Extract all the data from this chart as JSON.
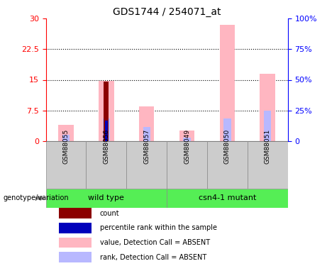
{
  "title": "GDS1744 / 254071_at",
  "samples": [
    "GSM88055",
    "GSM88056",
    "GSM88057",
    "GSM88049",
    "GSM88050",
    "GSM88051"
  ],
  "value_absent": [
    4.0,
    14.8,
    8.5,
    2.5,
    28.5,
    16.5
  ],
  "rank_absent": [
    1.5,
    5.5,
    3.5,
    0.8,
    5.5,
    7.5
  ],
  "count": [
    0,
    14.6,
    0,
    0,
    0,
    0
  ],
  "percentile_rank": [
    0,
    5.0,
    0,
    0,
    0,
    0
  ],
  "ylim_left": [
    0,
    30
  ],
  "ylim_right": [
    0,
    100
  ],
  "yticks_left": [
    0,
    7.5,
    15,
    22.5,
    30
  ],
  "yticks_right": [
    0,
    25,
    50,
    75,
    100
  ],
  "ytick_labels_left": [
    "0",
    "7.5",
    "15",
    "22.5",
    "30"
  ],
  "ytick_labels_right": [
    "0",
    "25%",
    "50%",
    "75%",
    "100%"
  ],
  "color_count": "#8B0000",
  "color_percentile": "#0000BB",
  "color_value_absent": "#FFB6C1",
  "color_rank_absent": "#b8b8ff",
  "genotype_label": "genotype/variation",
  "group_ranges": [
    [
      0,
      2,
      "wild type"
    ],
    [
      3,
      5,
      "csn4-1 mutant"
    ]
  ],
  "green_color": "#55ee55",
  "gray_color": "#cccccc",
  "legend_items": [
    {
      "label": "count",
      "color": "#8B0000"
    },
    {
      "label": "percentile rank within the sample",
      "color": "#0000BB"
    },
    {
      "label": "value, Detection Call = ABSENT",
      "color": "#FFB6C1"
    },
    {
      "label": "rank, Detection Call = ABSENT",
      "color": "#b8b8ff"
    }
  ]
}
